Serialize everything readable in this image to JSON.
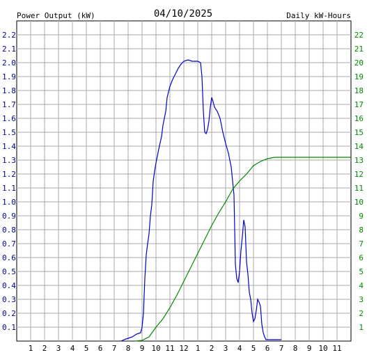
{
  "chart_data": {
    "type": "line",
    "title": "04/10/2025",
    "left_axis_label": "Power Output (kW)",
    "right_axis_label": "Daily kW-Hours",
    "x_ticks": [
      "1",
      "2",
      "3",
      "4",
      "5",
      "6",
      "7",
      "8",
      "9",
      "10",
      "11",
      "12",
      "1",
      "2",
      "3",
      "4",
      "5",
      "6",
      "7",
      "8",
      "9",
      "10",
      "11"
    ],
    "y_left_ticks": [
      "0.1",
      "0.2",
      "0.3",
      "0.4",
      "0.5",
      "0.6",
      "0.7",
      "0.8",
      "0.9",
      "1.0",
      "1.1",
      "1.2",
      "1.3",
      "1.4",
      "1.5",
      "1.6",
      "1.7",
      "1.8",
      "1.9",
      "2.0",
      "2.1",
      "2.2"
    ],
    "y_right_ticks": [
      "1",
      "2",
      "3",
      "4",
      "5",
      "6",
      "7",
      "8",
      "9",
      "10",
      "11",
      "12",
      "13",
      "14",
      "15",
      "16",
      "17",
      "18",
      "19",
      "20",
      "21",
      "22"
    ],
    "xlim": [
      0,
      24
    ],
    "ylim_left": [
      0,
      2.3
    ],
    "ylim_right": [
      0,
      23
    ],
    "grid": true,
    "colors": {
      "power": "#0000cc",
      "energy": "#008800",
      "grid": "#aaaaaa",
      "left_text": "#000099",
      "right_text": "#008800"
    },
    "series": [
      {
        "name": "Power Output (kW)",
        "axis": "left",
        "points": [
          [
            7.5,
            0.0
          ],
          [
            7.7,
            0.01
          ],
          [
            8.0,
            0.02
          ],
          [
            8.3,
            0.03
          ],
          [
            8.6,
            0.05
          ],
          [
            8.9,
            0.06
          ],
          [
            9.0,
            0.1
          ],
          [
            9.1,
            0.2
          ],
          [
            9.2,
            0.45
          ],
          [
            9.3,
            0.62
          ],
          [
            9.4,
            0.7
          ],
          [
            9.5,
            0.77
          ],
          [
            9.6,
            0.9
          ],
          [
            9.7,
            0.98
          ],
          [
            9.8,
            1.15
          ],
          [
            9.9,
            1.22
          ],
          [
            10.0,
            1.28
          ],
          [
            10.1,
            1.33
          ],
          [
            10.2,
            1.38
          ],
          [
            10.4,
            1.47
          ],
          [
            10.5,
            1.55
          ],
          [
            10.7,
            1.65
          ],
          [
            10.8,
            1.75
          ],
          [
            11.0,
            1.83
          ],
          [
            11.2,
            1.88
          ],
          [
            11.4,
            1.92
          ],
          [
            11.6,
            1.96
          ],
          [
            11.8,
            1.99
          ],
          [
            12.0,
            2.01
          ],
          [
            12.3,
            2.02
          ],
          [
            12.6,
            2.01
          ],
          [
            13.0,
            2.01
          ],
          [
            13.2,
            2.0
          ],
          [
            13.3,
            1.9
          ],
          [
            13.4,
            1.65
          ],
          [
            13.5,
            1.5
          ],
          [
            13.6,
            1.49
          ],
          [
            13.7,
            1.52
          ],
          [
            13.8,
            1.58
          ],
          [
            13.9,
            1.68
          ],
          [
            14.0,
            1.75
          ],
          [
            14.1,
            1.72
          ],
          [
            14.2,
            1.68
          ],
          [
            14.4,
            1.65
          ],
          [
            14.6,
            1.6
          ],
          [
            14.8,
            1.5
          ],
          [
            15.0,
            1.42
          ],
          [
            15.2,
            1.35
          ],
          [
            15.4,
            1.25
          ],
          [
            15.6,
            1.05
          ],
          [
            15.7,
            0.55
          ],
          [
            15.8,
            0.45
          ],
          [
            15.9,
            0.42
          ],
          [
            16.0,
            0.5
          ],
          [
            16.1,
            0.65
          ],
          [
            16.2,
            0.75
          ],
          [
            16.3,
            0.87
          ],
          [
            16.4,
            0.82
          ],
          [
            16.5,
            0.57
          ],
          [
            16.6,
            0.48
          ],
          [
            16.7,
            0.35
          ],
          [
            16.8,
            0.3
          ],
          [
            16.9,
            0.2
          ],
          [
            17.0,
            0.14
          ],
          [
            17.1,
            0.16
          ],
          [
            17.2,
            0.22
          ],
          [
            17.3,
            0.3
          ],
          [
            17.4,
            0.28
          ],
          [
            17.5,
            0.25
          ],
          [
            17.6,
            0.12
          ],
          [
            17.7,
            0.06
          ],
          [
            17.8,
            0.03
          ],
          [
            17.9,
            0.01
          ],
          [
            18.0,
            0.01
          ],
          [
            19.0,
            0.01
          ]
        ]
      },
      {
        "name": "Daily kW-Hours",
        "axis": "right",
        "points": [
          [
            8.5,
            0.0
          ],
          [
            9.0,
            0.05
          ],
          [
            9.5,
            0.3
          ],
          [
            10.0,
            1.0
          ],
          [
            10.5,
            1.6
          ],
          [
            11.0,
            2.4
          ],
          [
            11.5,
            3.3
          ],
          [
            12.0,
            4.3
          ],
          [
            12.5,
            5.3
          ],
          [
            13.0,
            6.3
          ],
          [
            13.5,
            7.3
          ],
          [
            14.0,
            8.3
          ],
          [
            14.5,
            9.2
          ],
          [
            15.0,
            10.0
          ],
          [
            15.5,
            10.9
          ],
          [
            16.0,
            11.5
          ],
          [
            16.5,
            12.0
          ],
          [
            17.0,
            12.6
          ],
          [
            17.5,
            12.9
          ],
          [
            18.0,
            13.1
          ],
          [
            18.5,
            13.2
          ],
          [
            19.0,
            13.2
          ],
          [
            24.0,
            13.2
          ]
        ]
      }
    ]
  }
}
